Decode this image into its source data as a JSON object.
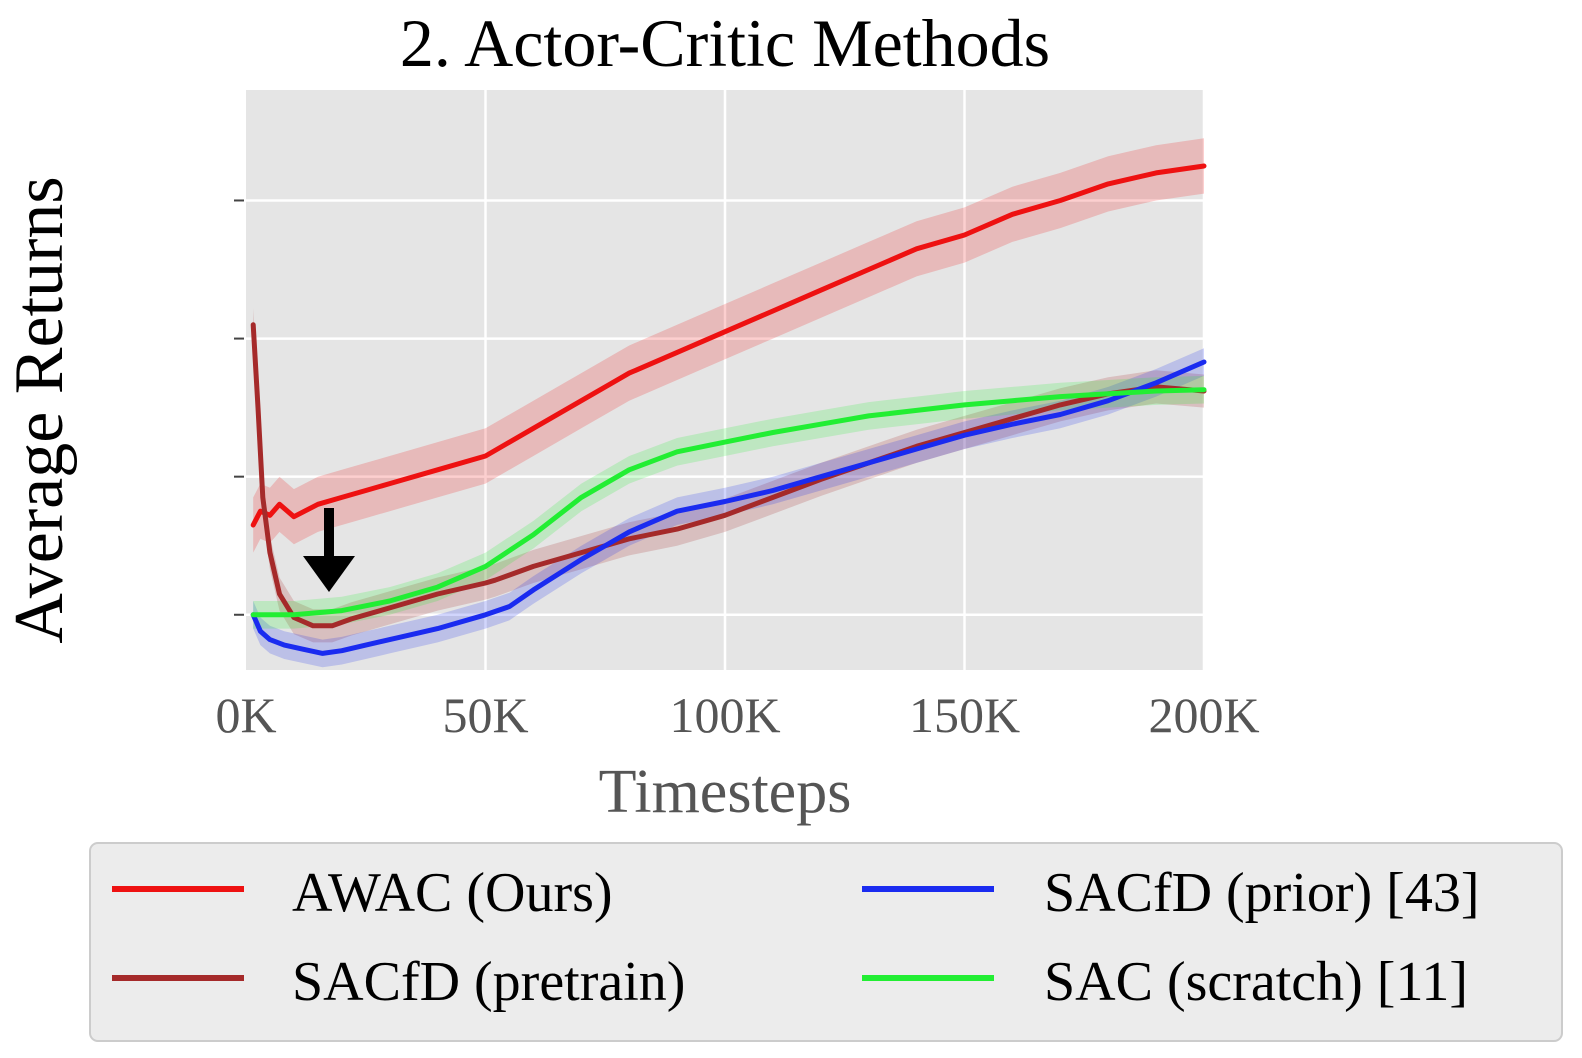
{
  "chart_data": {
    "type": "line",
    "title": "2. Actor-Critic Methods",
    "xlabel": "Timesteps",
    "ylabel": "Average Returns",
    "xlim": [
      0,
      200000
    ],
    "xticks": [
      0,
      50000,
      100000,
      150000,
      200000
    ],
    "xtick_labels": [
      "0K",
      "50K",
      "100K",
      "150K",
      "200K"
    ],
    "ylim": [
      -0.4,
      3.8
    ],
    "yticks": [
      0,
      1,
      2,
      3
    ],
    "ytick_labels": [
      "",
      "",
      "",
      ""
    ],
    "grid": true,
    "legend_position": "bottom",
    "annotation": "down-arrow",
    "series": [
      {
        "name": "AWAC (Ours)",
        "color": "#ee1111",
        "x": [
          1500,
          3000,
          5000,
          7000,
          10000,
          15000,
          20000,
          25000,
          30000,
          40000,
          50000,
          60000,
          70000,
          80000,
          90000,
          100000,
          110000,
          120000,
          130000,
          140000,
          150000,
          160000,
          170000,
          180000,
          190000,
          200000
        ],
        "y": [
          0.65,
          0.75,
          0.72,
          0.8,
          0.71,
          0.8,
          0.85,
          0.9,
          0.95,
          1.05,
          1.15,
          1.35,
          1.55,
          1.75,
          1.9,
          2.05,
          2.2,
          2.35,
          2.5,
          2.65,
          2.75,
          2.9,
          3.0,
          3.12,
          3.2,
          3.25
        ],
        "band": 0.2
      },
      {
        "name": "SACfD (pretrain)",
        "color": "#a52a2a",
        "x": [
          1500,
          2500,
          3500,
          5000,
          7000,
          10000,
          14000,
          18000,
          22000,
          30000,
          40000,
          50000,
          52000,
          60000,
          70000,
          80000,
          90000,
          100000,
          110000,
          120000,
          130000,
          140000,
          150000,
          160000,
          170000,
          180000,
          190000,
          200000
        ],
        "y": [
          2.1,
          1.5,
          0.85,
          0.45,
          0.15,
          -0.02,
          -0.08,
          -0.08,
          -0.03,
          0.05,
          0.15,
          0.23,
          0.25,
          0.35,
          0.45,
          0.55,
          0.62,
          0.72,
          0.85,
          0.98,
          1.1,
          1.22,
          1.32,
          1.42,
          1.52,
          1.6,
          1.65,
          1.62
        ],
        "band": 0.12
      },
      {
        "name": "SACfD (prior) [43]",
        "color": "#1a2bf0",
        "x": [
          1500,
          3000,
          5000,
          8000,
          12000,
          16000,
          20000,
          25000,
          30000,
          40000,
          50000,
          55000,
          60000,
          70000,
          80000,
          90000,
          100000,
          110000,
          120000,
          130000,
          140000,
          150000,
          160000,
          170000,
          180000,
          190000,
          200000
        ],
        "y": [
          0.0,
          -0.12,
          -0.18,
          -0.22,
          -0.25,
          -0.28,
          -0.26,
          -0.22,
          -0.18,
          -0.1,
          0.0,
          0.06,
          0.18,
          0.4,
          0.6,
          0.75,
          0.82,
          0.9,
          1.0,
          1.1,
          1.2,
          1.3,
          1.38,
          1.45,
          1.55,
          1.68,
          1.83
        ],
        "band": 0.1
      },
      {
        "name": "SAC (scratch) [11]",
        "color": "#22ee33",
        "x": [
          1500,
          10000,
          20000,
          30000,
          40000,
          50000,
          60000,
          70000,
          80000,
          90000,
          100000,
          110000,
          120000,
          130000,
          140000,
          150000,
          160000,
          170000,
          180000,
          190000,
          200000
        ],
        "y": [
          0.0,
          0.0,
          0.03,
          0.1,
          0.2,
          0.35,
          0.58,
          0.85,
          1.05,
          1.18,
          1.25,
          1.32,
          1.38,
          1.44,
          1.48,
          1.52,
          1.55,
          1.58,
          1.6,
          1.62,
          1.63
        ],
        "band": 0.1
      }
    ]
  }
}
